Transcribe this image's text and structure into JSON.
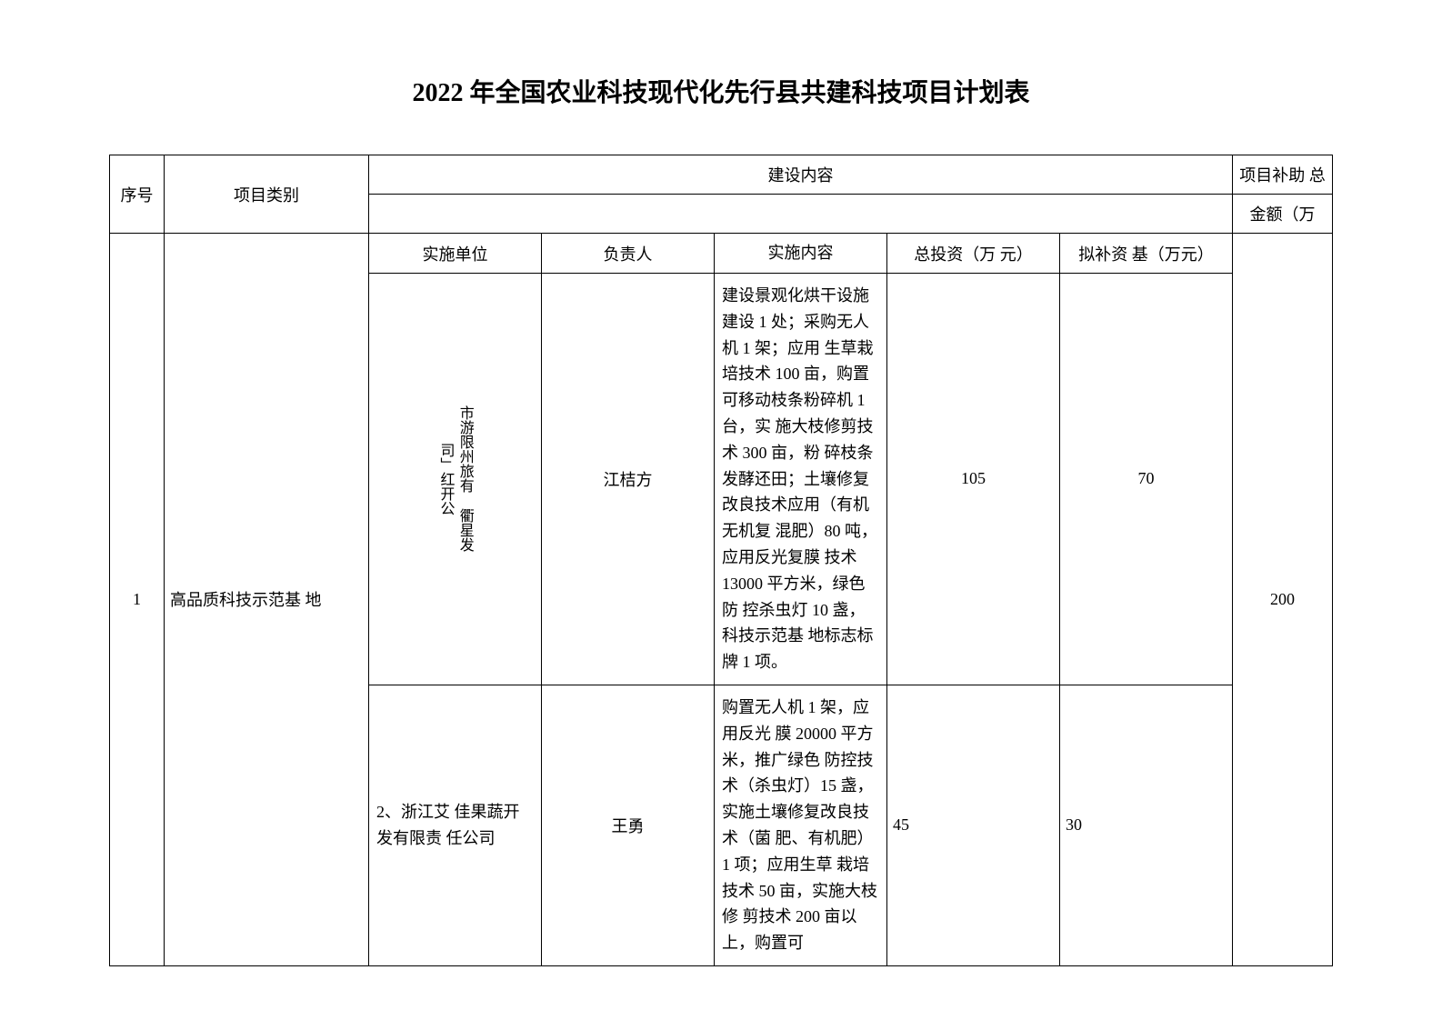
{
  "title": "2022 年全国农业科技现代化先行县共建科技项目计划表",
  "headers": {
    "seq": "序号",
    "category": "项目类别",
    "construction": "建设内容",
    "subsidy_total": "项目补助 总",
    "amount_unit": "金额（万",
    "impl_unit": "实施单位",
    "person": "负责人",
    "impl_content": "实施内容",
    "total_invest": "总投资（万 元）",
    "planned_subsidy": "拟补资 基（万元）"
  },
  "rows": [
    {
      "seq": "1",
      "category": "高品质科技示范基 地",
      "total_amount": "200",
      "sub_rows": [
        {
          "unit_col1": "司」红开公",
          "unit_col2": "市游限州旅有 衢星发",
          "person": "江桔方",
          "content": "建设景观化烘干设施建设 1 处；采购无人机 1 架；应用 生草栽培技术 100 亩，购置 可移动枝条粉碎机 1 台，实 施大枝修剪技术 300 亩，粉 碎枝条发酵还田；土壤修复 改良技术应用（有机无机复 混肥）80 吨，应用反光复膜 技术 13000 平方米，绿色防 控杀虫灯 10 盏，科技示范基 地标志标牌 1 项。",
          "invest": "105",
          "subsidy": "70"
        },
        {
          "unit": "2、浙江艾 佳果蔬开 发有限责 任公司",
          "person": "王勇",
          "content": "购置无人机 1 架，应用反光 膜 20000 平方米，推广绿色 防控技术（杀虫灯）15 盏， 实施土壤修复改良技术（菌 肥、有机肥）1 项；应用生草 栽培技术 50 亩，实施大枝修 剪技术 200 亩以上，购置可",
          "invest": "45",
          "subsidy": "30"
        }
      ]
    }
  ]
}
